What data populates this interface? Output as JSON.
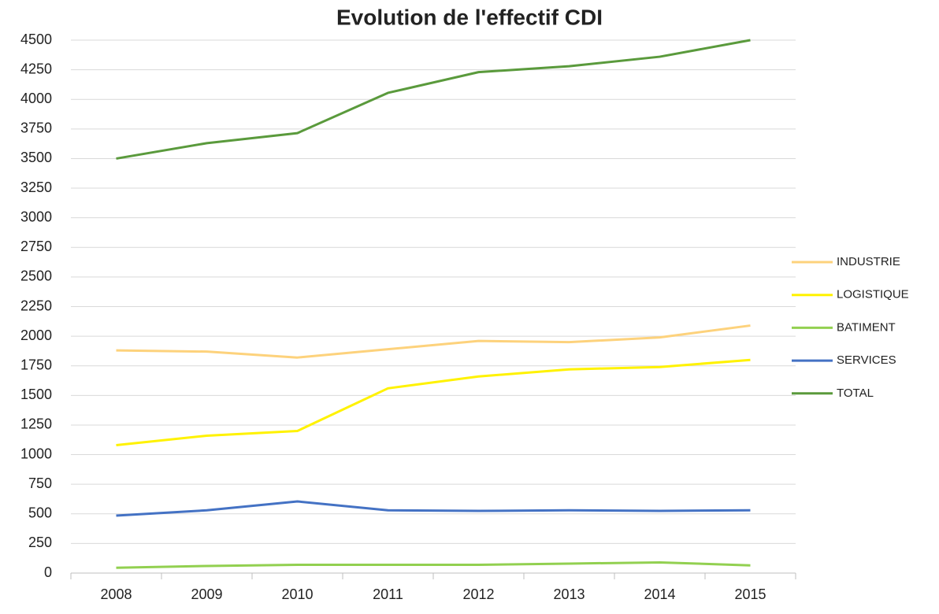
{
  "chart_data": {
    "type": "line",
    "title": "Evolution de l'effectif CDI",
    "categories": [
      "2008",
      "2009",
      "2010",
      "2011",
      "2012",
      "2013",
      "2014",
      "2015"
    ],
    "series": [
      {
        "name": "INDUSTRIE",
        "color": "#fdd27c",
        "values": [
          1880,
          1870,
          1820,
          1890,
          1960,
          1950,
          1990,
          2090
        ]
      },
      {
        "name": "LOGISTIQUE",
        "color": "#fff200",
        "values": [
          1080,
          1160,
          1200,
          1560,
          1660,
          1720,
          1740,
          1800
        ]
      },
      {
        "name": "BATIMENT",
        "color": "#92d050",
        "values": [
          45,
          60,
          70,
          70,
          70,
          80,
          90,
          65
        ]
      },
      {
        "name": "SERVICES",
        "color": "#4472c4",
        "values": [
          485,
          530,
          605,
          530,
          525,
          530,
          525,
          530
        ]
      },
      {
        "name": "TOTAL",
        "color": "#5a9a3c",
        "values": [
          3500,
          3630,
          3715,
          4055,
          4230,
          4280,
          4360,
          4500
        ]
      }
    ],
    "ylim": [
      0,
      4500
    ],
    "yticks": [
      0,
      250,
      500,
      750,
      1000,
      1250,
      1500,
      1750,
      2000,
      2250,
      2500,
      2750,
      3000,
      3250,
      3500,
      3750,
      4000,
      4250,
      4500
    ],
    "grid": true,
    "legend": "right"
  }
}
